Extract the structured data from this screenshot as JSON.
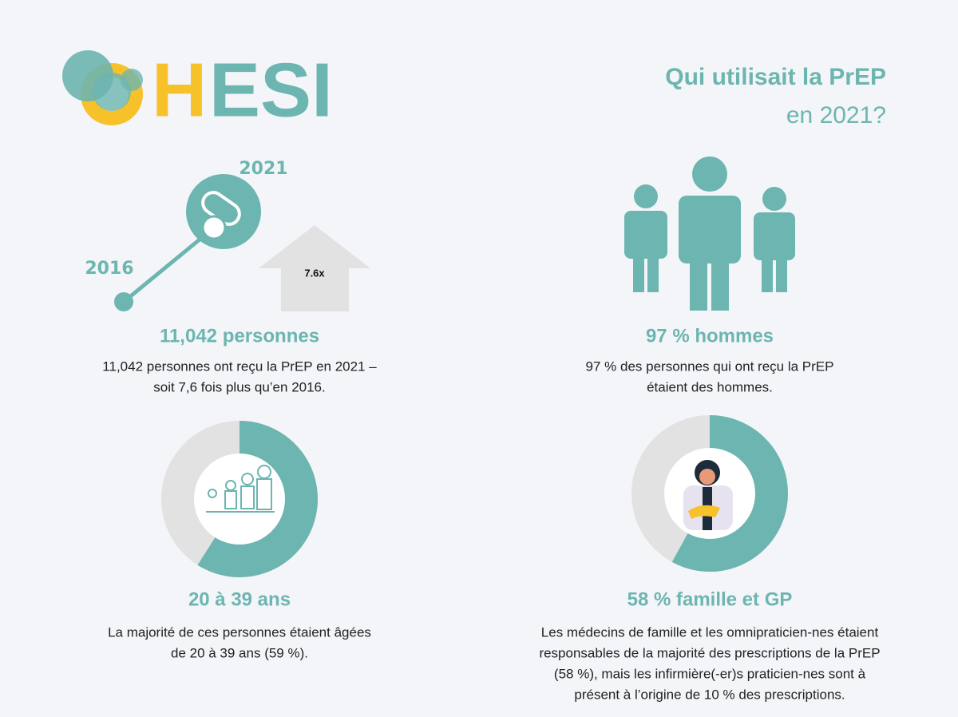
{
  "logo": {
    "first": "H",
    "rest": "ESI"
  },
  "header": {
    "title": "Qui utilisait la PrEP",
    "subtitle": "en 2021?"
  },
  "panels": [
    {
      "timeline": {
        "end": "2021",
        "start": "2016",
        "multiplier": "7.6x"
      },
      "headline": "11,042 personnes",
      "text": [
        "11,042 personnes ont reçu la PrEP en 2021 –",
        "soit 7,6 fois plus qu’en 2016."
      ]
    },
    {
      "headline": "97 % hommes",
      "text": [
        "97 % des personnes qui ont reçu la PrEP",
        "étaient des hommes."
      ]
    },
    {
      "donut": {
        "value": 59
      },
      "headline": "20 à 39 ans",
      "text": [
        "La majorité de ces personnes étaient âgées",
        "de 20 à 39 ans (59 %)."
      ]
    },
    {
      "donut": {
        "value": 58
      },
      "headline": "58 % famille et GP",
      "text": [
        "Les médecins de famille et les omnipraticien-nes étaient",
        "responsables de la majorité des prescriptions de la PrEP",
        "(58 %), mais les infirmière(-er)s praticien-nes sont à",
        "présent à l’origine de 10 % des prescriptions."
      ]
    }
  ]
}
